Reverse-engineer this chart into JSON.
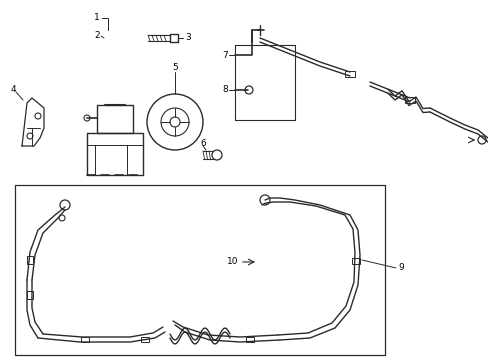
{
  "bg_color": "#ffffff",
  "line_color": "#2a2a2a",
  "label_color": "#000000",
  "fig_width": 4.89,
  "fig_height": 3.6,
  "dpi": 100
}
